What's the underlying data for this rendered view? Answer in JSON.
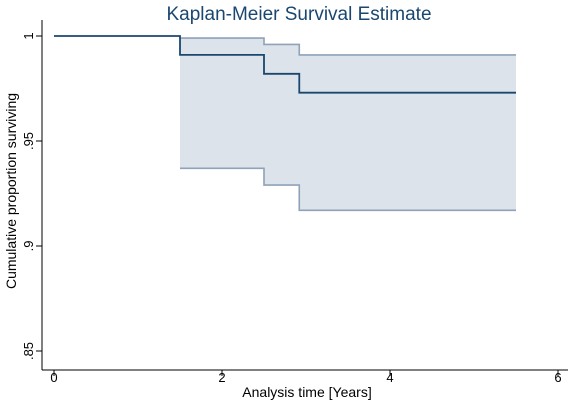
{
  "chart_data": {
    "type": "line",
    "title": "Kaplan-Meier Survival Estimate",
    "xlabel": "Analysis time [Years]",
    "ylabel": "Cumulative proportion surviving",
    "xlim": [
      0,
      6
    ],
    "ylim": [
      0.85,
      1.0
    ],
    "x_ticks": [
      0,
      2,
      4,
      6
    ],
    "x_tick_labels": [
      "0",
      "2",
      "4",
      "6"
    ],
    "y_ticks": [
      0.85,
      0.9,
      0.95,
      1.0
    ],
    "y_tick_labels": [
      ".85",
      ".9",
      ".95",
      "1"
    ],
    "grid": false,
    "step": true,
    "series": [
      {
        "role": "estimate",
        "x": [
          0,
          1.5,
          2.5,
          2.92,
          5.5
        ],
        "y": [
          1.0,
          0.991,
          0.982,
          0.973,
          0.973
        ]
      },
      {
        "role": "upper_ci",
        "x": [
          1.5,
          2.5,
          2.92,
          5.5
        ],
        "y": [
          0.999,
          0.996,
          0.991,
          0.991
        ]
      },
      {
        "role": "lower_ci",
        "x": [
          1.5,
          2.5,
          2.92,
          5.5
        ],
        "y": [
          0.937,
          0.929,
          0.917,
          0.917
        ]
      }
    ],
    "colors": {
      "title": "#1a476f",
      "estimate_line": "#1a476f",
      "ci_line": "#8ea2b8",
      "ci_fill": "#dde3ea",
      "axis": "#000000",
      "background": "#ffffff"
    }
  }
}
